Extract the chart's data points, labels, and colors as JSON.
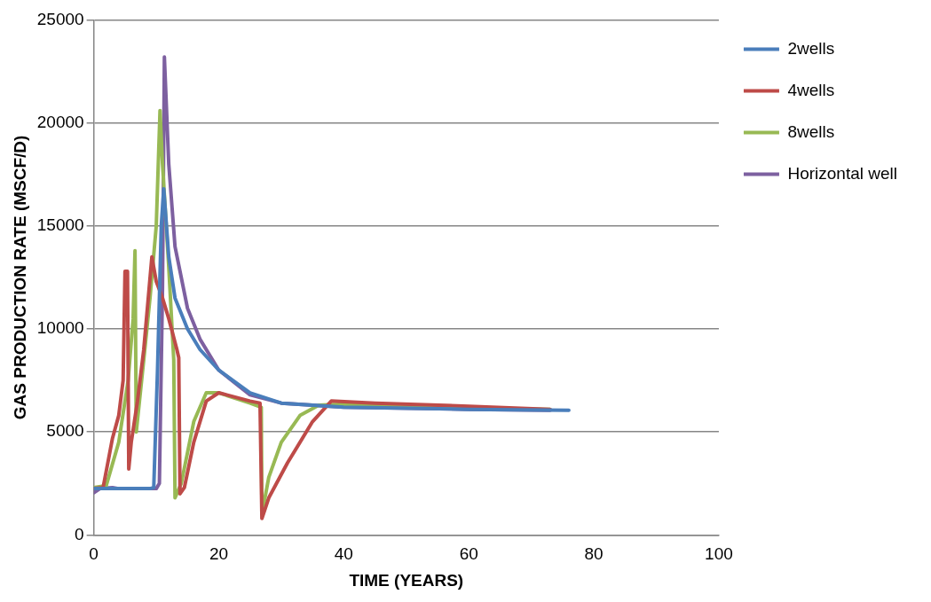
{
  "chart_data": {
    "type": "line",
    "xlabel": "TIME (YEARS)",
    "ylabel": "GAS PRODUCTION RATE (MSCF/D)",
    "xlim": [
      0,
      100
    ],
    "xticks": [
      0,
      20,
      40,
      60,
      80,
      100
    ],
    "ylim": [
      0,
      25000
    ],
    "yticks": [
      0,
      5000,
      10000,
      15000,
      20000,
      25000
    ],
    "grid": "y",
    "legend": "top right",
    "marker": "none",
    "line_style": "solid",
    "series": [
      {
        "name": "2wells",
        "color": "#4a7ebb",
        "x": [
          0,
          5,
          9,
          9.6,
          10.2,
          10.8,
          11.2,
          12,
          13,
          15,
          17,
          20,
          25,
          30,
          40,
          60,
          76
        ],
        "values": [
          2250,
          2250,
          2250,
          2300,
          8000,
          15000,
          16800,
          13500,
          11500,
          10000,
          9000,
          8000,
          6900,
          6400,
          6200,
          6100,
          6050
        ]
      },
      {
        "name": "4wells",
        "color": "#be4b48",
        "x": [
          0,
          1.5,
          3,
          4,
          4.7,
          5,
          5.4,
          5.6,
          6,
          7,
          8,
          9.3,
          10,
          11,
          12,
          13.3,
          13.6,
          13.8,
          14.5,
          16,
          18,
          20,
          25,
          26.6,
          26.9,
          28,
          31,
          35,
          38,
          45,
          60,
          73
        ],
        "values": [
          2250,
          2300,
          4700,
          5800,
          7500,
          12800,
          12800,
          3200,
          4500,
          6500,
          9000,
          13500,
          12300,
          11500,
          10500,
          9000,
          8600,
          2000,
          2300,
          4500,
          6500,
          6900,
          6500,
          6400,
          800,
          1800,
          3500,
          5500,
          6500,
          6400,
          6250,
          6100
        ]
      },
      {
        "name": "8wells",
        "color": "#98b954",
        "x": [
          0,
          2,
          4,
          5.5,
          6.3,
          6.6,
          6.8,
          8,
          9,
          10,
          10.6,
          11,
          12,
          12.8,
          13,
          14,
          16,
          18,
          20,
          25,
          26.8,
          26.9,
          28,
          30,
          33,
          36,
          40,
          60,
          73
        ],
        "values": [
          2300,
          2400,
          4500,
          7500,
          10500,
          13800,
          5000,
          8500,
          11500,
          15000,
          20600,
          18000,
          13000,
          8500,
          1800,
          2500,
          5500,
          6900,
          6900,
          6400,
          6200,
          1000,
          2800,
          4500,
          5800,
          6300,
          6350,
          6150,
          6100
        ]
      },
      {
        "name": "Horizontal well",
        "color": "#7d60a0",
        "x": [
          0,
          1,
          3,
          4,
          10,
          10.5,
          11,
          11.3,
          12,
          13,
          15,
          17,
          20,
          25,
          30,
          40,
          60,
          73
        ],
        "values": [
          2050,
          2250,
          2300,
          2250,
          2250,
          2500,
          12000,
          23200,
          18000,
          14000,
          11000,
          9500,
          8000,
          6800,
          6400,
          6200,
          6100,
          6050
        ]
      }
    ]
  }
}
